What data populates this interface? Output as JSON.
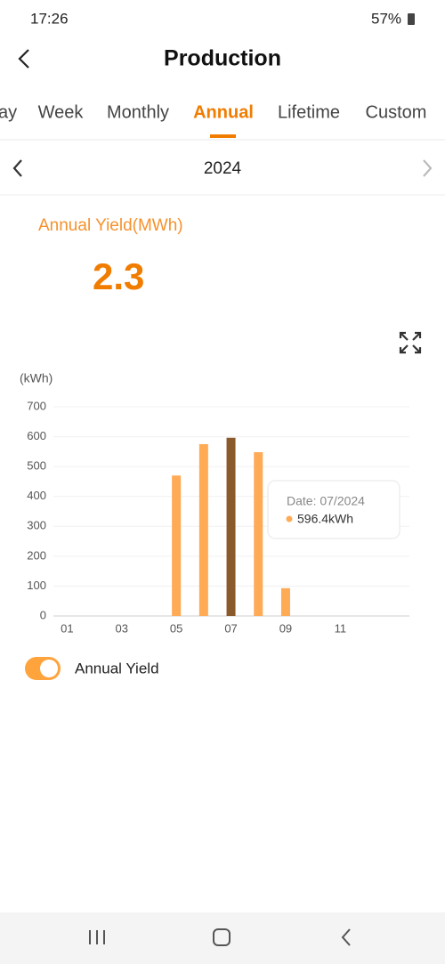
{
  "status_bar": {
    "time": "17:26",
    "battery": "57%"
  },
  "header": {
    "title": "Production"
  },
  "tabs": [
    "ay",
    "Week",
    "Monthly",
    "Annual",
    "Lifetime",
    "Custom"
  ],
  "year": "2024",
  "summary": {
    "label": "Annual Yield(MWh)",
    "value": "2.3"
  },
  "tooltip": {
    "date": "Date: 07/2024",
    "value": "596.4kWh"
  },
  "chart_data": {
    "type": "bar",
    "y_label": "(kWh)",
    "categories": [
      "01",
      null,
      "03",
      null,
      "05",
      null,
      "07",
      null,
      "09",
      null,
      "11",
      null
    ],
    "series": [
      {
        "name": "Annual Yield",
        "color": "#ffaa55",
        "values": [
          null,
          null,
          null,
          null,
          470,
          575,
          596.4,
          548,
          93,
          null,
          null,
          null
        ]
      }
    ],
    "highlight_color": "#8a5a2c",
    "ylim": [
      0,
      700
    ],
    "yticks": [
      0,
      100,
      200,
      300,
      400,
      500,
      600,
      700
    ],
    "grid": true
  }
}
